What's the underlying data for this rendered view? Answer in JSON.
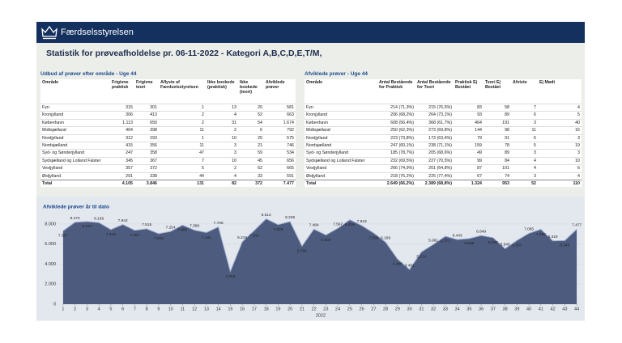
{
  "header": {
    "brand": "Færdselsstyrelsen"
  },
  "title": "Statistik for prøveafholdelse pr. 06-11-2022 - Kategori A,B,C,D,E,T/M,",
  "table1": {
    "title": "Udbud af prøver efter område - Uge 44",
    "columns": [
      "Område",
      "Frigivne praktisk",
      "Frigivne teori",
      "Aflyste af Færdselsstyrelsen",
      "Ikke bookede (praktisk)",
      "Ikke bookede (teori)",
      "Afviklede prøver"
    ],
    "rows": [
      [
        "Fyn",
        "315",
        "301",
        "1",
        "13",
        "20",
        "581"
      ],
      [
        "Kronjylland",
        "306",
        "413",
        "2",
        "4",
        "52",
        "663"
      ],
      [
        "København",
        "1.113",
        "650",
        "2",
        "31",
        "54",
        "1.674"
      ],
      [
        "Midtsjælland",
        "404",
        "398",
        "11",
        "2",
        "6",
        "792"
      ],
      [
        "Nordjylland",
        "312",
        "293",
        "1",
        "10",
        "20",
        "575"
      ],
      [
        "Nordsjælland",
        "415",
        "356",
        "11",
        "3",
        "21",
        "746"
      ],
      [
        "Syd- og Sønderjylland",
        "247",
        "358",
        "47",
        "3",
        "59",
        "534"
      ],
      [
        "Sydsjælland og Lolland Falster",
        "345",
        "367",
        "7",
        "10",
        "45",
        "656"
      ],
      [
        "Vestjylland",
        "357",
        "372",
        "5",
        "2",
        "62",
        "665"
      ],
      [
        "Østjylland",
        "291",
        "338",
        "44",
        "4",
        "33",
        "591"
      ],
      [
        "Total",
        "4.105",
        "3.846",
        "131",
        "82",
        "372",
        "7.477"
      ]
    ]
  },
  "table2": {
    "title": "Afviklede prøver - Uge 44",
    "columns": [
      "Område",
      "Antal Bestående for Praktisk",
      "Antal Bestående for Teori",
      "Praktisk Ej Bestået",
      "Teori Ej Bestået",
      "Afviste",
      "Ej Mødt"
    ],
    "rows": [
      [
        "Fyn",
        "214 (71,3%)",
        "215 (76,5%)",
        "83",
        "58",
        "7",
        "4"
      ],
      [
        "Kronjylland",
        "206 (68,2%)",
        "264 (73,1%)",
        "93",
        "89",
        "6",
        "5"
      ],
      [
        "København",
        "608 (56,4%)",
        "368 (61,7%)",
        "464",
        "191",
        "3",
        "40"
      ],
      [
        "Midtsjælland",
        "250 (62,3%)",
        "273 (69,8%)",
        "144",
        "98",
        "11",
        "16"
      ],
      [
        "Nordjylland",
        "223 (73,8%)",
        "173 (63,4%)",
        "79",
        "91",
        "6",
        "3"
      ],
      [
        "Nordsjælland",
        "247 (60,1%)",
        "238 (71,1%)",
        "159",
        "78",
        "5",
        "19"
      ],
      [
        "Syd- og Sønderjylland",
        "185 (78,7%)",
        "205 (68,6%)",
        "49",
        "89",
        "3",
        "3"
      ],
      [
        "Sydsjælland og Lolland Falster",
        "232 (69,5%)",
        "227 (70,5%)",
        "99",
        "84",
        "4",
        "10"
      ],
      [
        "Vestjylland",
        "266 (74,9%)",
        "201 (64,8%)",
        "87",
        "101",
        "4",
        "6"
      ],
      [
        "Østjylland",
        "218 (76,2%)",
        "225 (77,4%)",
        "67",
        "74",
        "3",
        "4"
      ],
      [
        "Total",
        "2.649 (66,2%)",
        "2.389 (68,8%)",
        "1.324",
        "953",
        "52",
        "110"
      ]
    ]
  },
  "chart_data": {
    "type": "area",
    "title": "Afviklede prøver år til dato",
    "xlabel": "2022",
    "color": "#4d5b7e",
    "line_color": "#9fb0d0",
    "x": [
      1,
      2,
      3,
      4,
      5,
      6,
      7,
      8,
      9,
      10,
      11,
      12,
      13,
      14,
      15,
      16,
      17,
      18,
      19,
      20,
      21,
      22,
      23,
      24,
      25,
      26,
      27,
      28,
      29,
      30,
      31,
      32,
      33,
      34,
      35,
      36,
      37,
      38,
      39,
      40,
      41,
      42,
      43,
      44
    ],
    "values": [
      7307,
      8174,
      8237,
      8136,
      7444,
      7942,
      7367,
      7515,
      7033,
      7254,
      7885,
      7386,
      7141,
      7708,
      3253,
      6216,
      7343,
      8512,
      7928,
      8236,
      5785,
      7484,
      6900,
      7567,
      8418,
      7843,
      7096,
      6189,
      4496,
      3461,
      5214,
      5961,
      6771,
      6443,
      6546,
      6849,
      6633,
      5540,
      6357,
      7065,
      7465,
      6319,
      6345,
      7477
    ],
    "value_labels": [
      "7.307",
      "8.174",
      "8.237",
      "8.136",
      "7.444",
      "7.942",
      "7.367",
      "7.515",
      "7.033",
      "7.254",
      "7.885",
      "7.386",
      "7.141",
      "7.708",
      "3.253",
      "6.216",
      "7.343",
      "8.512",
      "7.928",
      "8.236",
      "5.785",
      "7.484",
      "6.900",
      "7.567",
      "8.418",
      "7.843",
      "7.096",
      "6.189",
      "4.496",
      "3.461",
      "5.214",
      "5.961",
      "6.771",
      "6.443",
      "6.546",
      "6.849",
      "6.633",
      "5.540",
      "6.357",
      "7.065",
      "7.465",
      "6.319",
      "6.345",
      "7.477"
    ],
    "xlim": [
      0.6,
      44.4
    ],
    "ylim": [
      0,
      9200
    ],
    "yticks": [
      0,
      {
        "value": 2000,
        "label": "2.000"
      },
      {
        "value": 4000,
        "label": "4.000"
      },
      {
        "value": 6000,
        "label": "6.000"
      },
      {
        "value": 8000,
        "label": "8.000"
      }
    ]
  }
}
